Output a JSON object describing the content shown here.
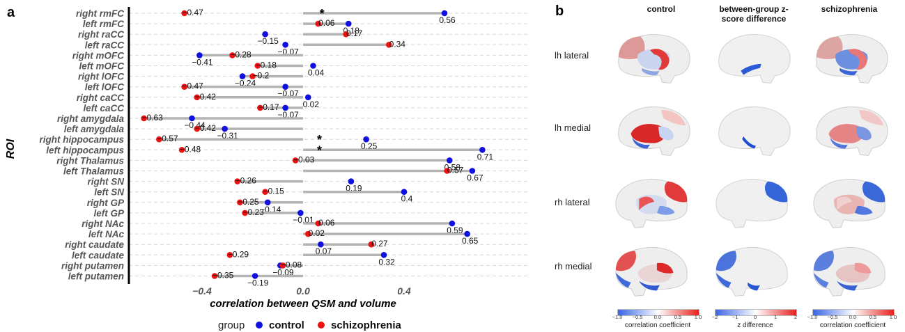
{
  "panel_a": {
    "letter": "a",
    "ylabel": "ROI",
    "xlabel": "correlation between QSM and volume",
    "xticks": [
      "−0.4",
      "0.0",
      "0.4"
    ],
    "xtick_values": [
      -0.4,
      0.0,
      0.4
    ],
    "legend": {
      "title": "group",
      "items": [
        "control",
        "schizophrenia"
      ]
    },
    "significance_marker": "*"
  },
  "chart_data": {
    "type": "dumbbell",
    "xlim": [
      -0.65,
      0.76
    ],
    "xlabel": "correlation between QSM and volume",
    "ylabel": "ROI",
    "grid": "horizontal dashed",
    "legend_position": "bottom",
    "colors": {
      "control": "#1010e0",
      "schizophrenia": "#ee1111",
      "connector": "#b3b3b3"
    },
    "categories": [
      "right rmFC",
      "left rmFC",
      "right raCC",
      "left raCC",
      "right mOFC",
      "left mOFC",
      "right lOFC",
      "left lOFC",
      "right caCC",
      "left caCC",
      "right amygdala",
      "left amygdala",
      "right hippocampus",
      "left hippocampus",
      "right Thalamus",
      "left Thalamus",
      "right SN",
      "left SN",
      "right GP",
      "left GP",
      "right NAc",
      "left NAc",
      "right caudate",
      "left caudate",
      "right putamen",
      "left putamen"
    ],
    "series": [
      {
        "name": "control",
        "values": [
          0.56,
          0.18,
          -0.15,
          -0.07,
          -0.41,
          0.04,
          -0.24,
          -0.07,
          0.02,
          -0.07,
          -0.44,
          -0.31,
          0.25,
          0.71,
          0.58,
          0.67,
          0.19,
          0.4,
          -0.14,
          -0.01,
          0.59,
          0.65,
          0.07,
          0.32,
          -0.09,
          -0.19
        ]
      },
      {
        "name": "schizophrenia",
        "values": [
          -0.47,
          0.06,
          0.17,
          0.34,
          -0.28,
          -0.18,
          -0.2,
          -0.47,
          -0.42,
          -0.17,
          -0.63,
          -0.42,
          -0.57,
          -0.48,
          -0.03,
          0.57,
          -0.26,
          -0.15,
          -0.25,
          -0.23,
          0.06,
          0.02,
          0.27,
          -0.29,
          -0.08,
          -0.35
        ]
      }
    ],
    "data_labels": {
      "control": [
        "0.56",
        "0.18",
        "−0.15",
        "−0.07",
        "−0.41",
        "0.04",
        "−0.24",
        "−0.07",
        "0.02",
        "−0.07",
        "−0.44",
        "−0.31",
        "0.25",
        "0.71",
        "0.58",
        "0.67",
        "0.19",
        "0.4",
        "−0.14",
        "−0.01",
        "0.59",
        "0.65",
        "0.07",
        "0.32",
        "−0.09",
        "−0.19"
      ],
      "schizophrenia": [
        "−0.47",
        "0.06",
        "0.17",
        "0.34",
        "−0.28",
        "−0.18",
        "−0.2",
        "−0.47",
        "−0.42",
        "−0.17",
        "−0.63",
        "−0.42",
        "−0.57",
        "−0.48",
        "−0.03",
        "0.57",
        "−0.26",
        "−0.15",
        "−0.25",
        "−0.23",
        "0.06",
        "0.02",
        "0.27",
        "−0.29",
        "−0.08",
        "−0.35"
      ]
    },
    "significant": [
      "right rmFC",
      "right hippocampus",
      "left hippocampus"
    ]
  },
  "panel_b": {
    "letter": "b",
    "columns": [
      "control",
      "between-group z-score difference",
      "schizophrenia"
    ],
    "rows": [
      "lh lateral",
      "lh medial",
      "rh lateral",
      "rh medial"
    ],
    "colorbars": [
      {
        "label": "correlation coefficient",
        "ticks": [
          "−1.0",
          "−0.5",
          "0.0",
          "0.5",
          "1.0"
        ]
      },
      {
        "label": "z difference",
        "ticks": [
          "−2",
          "−1",
          "0",
          "1",
          "2"
        ]
      },
      {
        "label": "correlation coefficient",
        "ticks": [
          "−1.0",
          "−0.5",
          "0.0",
          "0.5",
          "1.0"
        ]
      }
    ]
  }
}
